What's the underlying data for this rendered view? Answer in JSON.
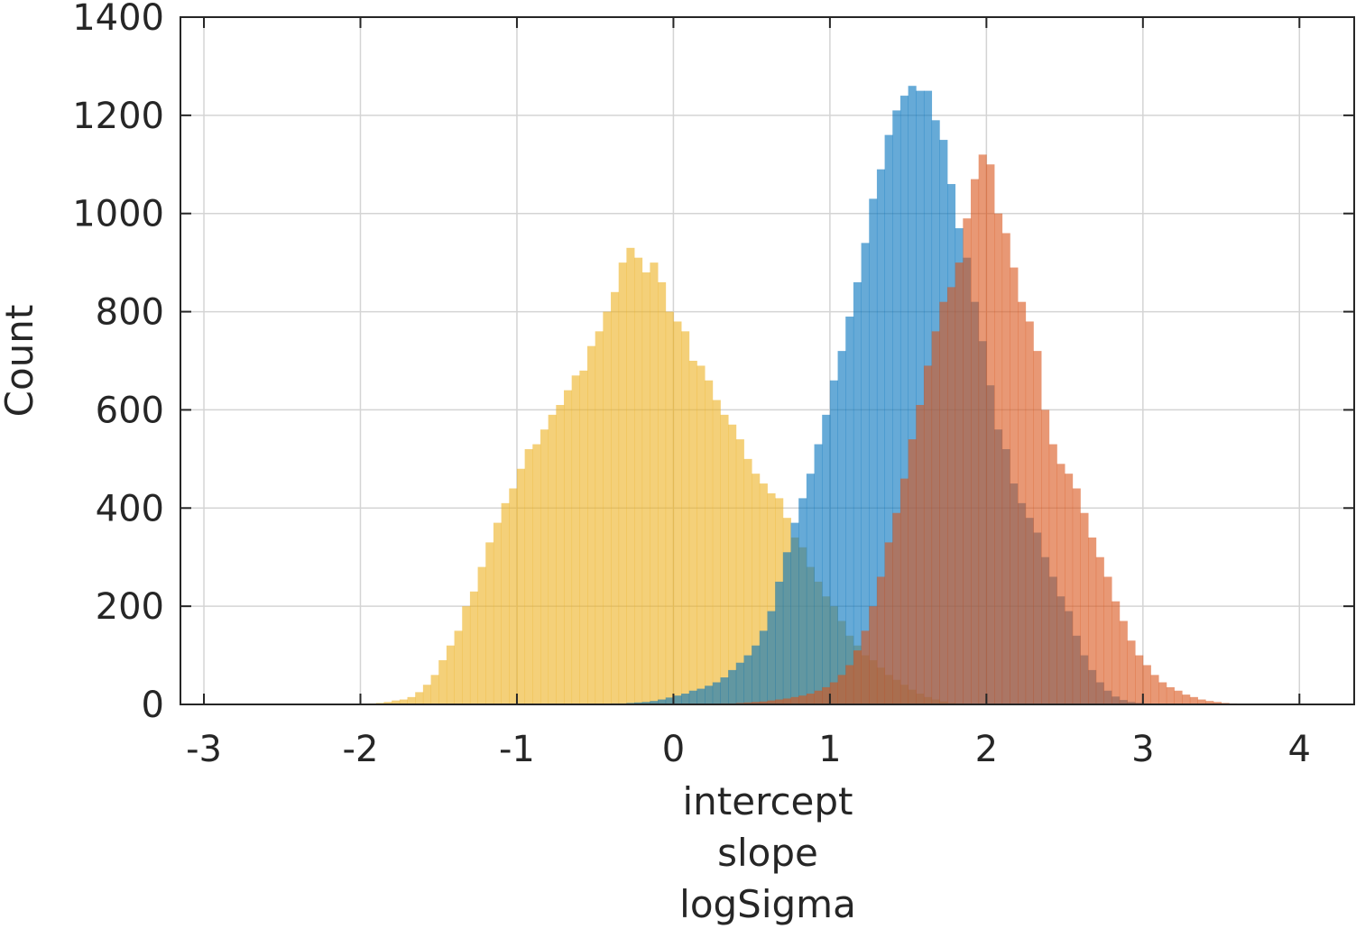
{
  "chart_data": {
    "type": "histogram",
    "xlabel": [
      "intercept",
      "slope",
      "logSigma"
    ],
    "ylabel": "Count",
    "xlim": [
      -3.15,
      4.35
    ],
    "ylim": [
      0,
      1400
    ],
    "xticks": [
      -3,
      -2,
      -1,
      0,
      1,
      2,
      3,
      4
    ],
    "yticks": [
      0,
      200,
      400,
      600,
      800,
      1000,
      1200,
      1400
    ],
    "grid": true,
    "series": [
      {
        "color": "#EDB120",
        "opacity": 0.6,
        "bin_width": 0.05,
        "bin_start": -2.0,
        "counts": [
          1,
          2,
          3,
          5,
          8,
          10,
          15,
          25,
          40,
          60,
          90,
          120,
          150,
          200,
          230,
          280,
          330,
          370,
          410,
          440,
          480,
          520,
          530,
          560,
          590,
          610,
          640,
          670,
          680,
          730,
          760,
          800,
          840,
          900,
          930,
          910,
          880,
          900,
          860,
          800,
          780,
          760,
          700,
          690,
          660,
          620,
          590,
          570,
          540,
          500,
          470,
          450,
          430,
          420,
          380,
          340,
          320,
          280,
          250,
          220,
          200,
          170,
          140,
          120,
          100,
          90,
          75,
          60,
          50,
          40,
          30,
          22,
          15,
          10,
          6,
          3,
          2,
          1
        ]
      },
      {
        "color": "#0072BD",
        "opacity": 0.6,
        "bin_width": 0.05,
        "bin_start": -0.5,
        "counts": [
          1,
          1,
          2,
          2,
          3,
          4,
          5,
          7,
          10,
          14,
          18,
          22,
          28,
          32,
          38,
          45,
          55,
          70,
          85,
          100,
          120,
          150,
          190,
          250,
          310,
          370,
          420,
          470,
          530,
          590,
          660,
          720,
          790,
          860,
          940,
          1030,
          1090,
          1160,
          1210,
          1240,
          1260,
          1250,
          1250,
          1190,
          1150,
          1060,
          970,
          910,
          820,
          740,
          650,
          560,
          520,
          450,
          410,
          380,
          350,
          300,
          260,
          220,
          190,
          140,
          100,
          70,
          45,
          28,
          16,
          9,
          5,
          3,
          2,
          1
        ]
      },
      {
        "color": "#D95319",
        "opacity": 0.6,
        "bin_width": 0.05,
        "bin_start": 0.2,
        "counts": [
          1,
          1,
          2,
          2,
          3,
          4,
          5,
          6,
          8,
          10,
          12,
          15,
          18,
          22,
          28,
          35,
          45,
          60,
          80,
          110,
          150,
          200,
          260,
          330,
          390,
          460,
          540,
          610,
          690,
          760,
          820,
          850,
          900,
          990,
          1070,
          1120,
          1100,
          1000,
          960,
          890,
          820,
          780,
          720,
          600,
          530,
          490,
          470,
          440,
          390,
          340,
          300,
          260,
          210,
          170,
          130,
          100,
          80,
          60,
          45,
          35,
          28,
          20,
          15,
          10,
          7,
          5,
          3,
          2,
          1,
          1
        ]
      }
    ]
  }
}
